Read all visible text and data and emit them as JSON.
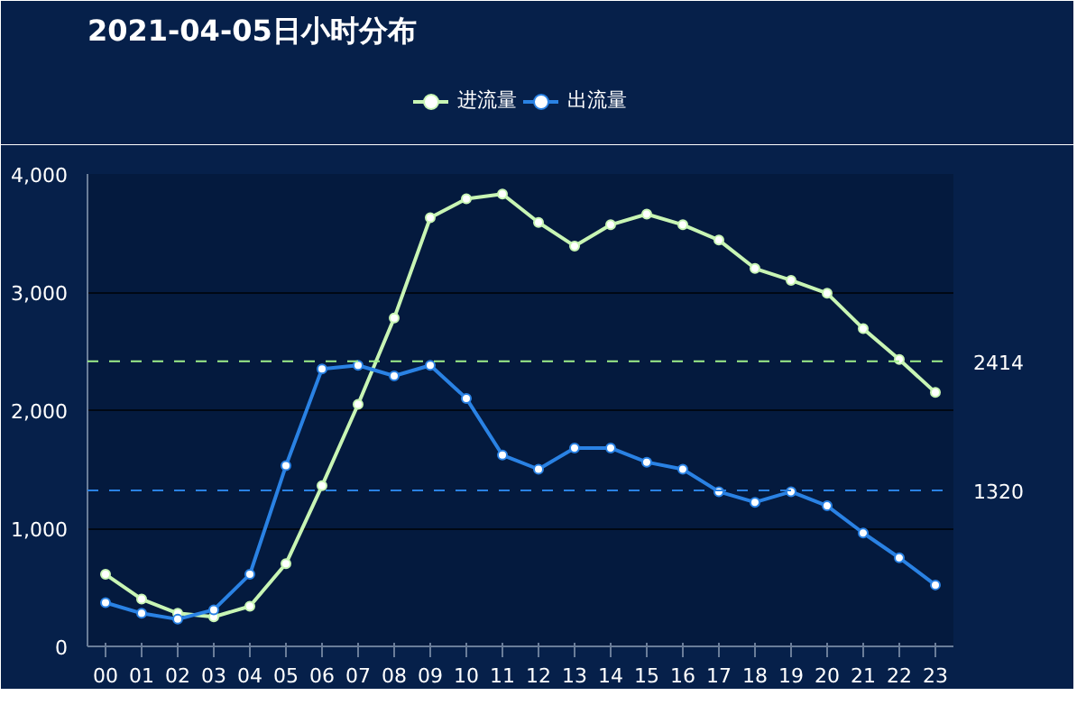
{
  "chart_data": {
    "type": "line",
    "title": "2021-04-05日小时分布",
    "categories": [
      "00",
      "01",
      "02",
      "03",
      "04",
      "05",
      "06",
      "07",
      "08",
      "09",
      "10",
      "11",
      "12",
      "13",
      "14",
      "15",
      "16",
      "17",
      "18",
      "19",
      "20",
      "21",
      "22",
      "23"
    ],
    "series": [
      {
        "name": "进流量",
        "color": "#c8f5b4",
        "values": [
          610,
          400,
          280,
          250,
          340,
          700,
          1360,
          2050,
          2780,
          3630,
          3790,
          3830,
          3590,
          3390,
          3570,
          3660,
          3570,
          3440,
          3200,
          3100,
          2990,
          2690,
          2430,
          2150
        ]
      },
      {
        "name": "出流量",
        "color": "#2a82e4",
        "values": [
          370,
          280,
          230,
          310,
          610,
          1530,
          2350,
          2380,
          2290,
          2380,
          2100,
          1620,
          1500,
          1680,
          1680,
          1560,
          1500,
          1310,
          1220,
          1310,
          1190,
          960,
          750,
          520
        ]
      }
    ],
    "ylim": [
      0,
      4000
    ],
    "yticks": [
      0,
      {
        "value": 1000,
        "label": "1,000"
      },
      {
        "value": 2000,
        "label": "2,000"
      },
      {
        "value": 3000,
        "label": "3,000"
      },
      {
        "value": 4000,
        "label": "4,000"
      }
    ],
    "ref_lines": [
      {
        "axis": "y",
        "value": 2414,
        "label": "2414",
        "color": "#9ef08a",
        "line_style": "dashed"
      },
      {
        "axis": "y",
        "value": 1320,
        "label": "1320",
        "color": "#2a82e4",
        "line_style": "dashed"
      }
    ],
    "grid": "y",
    "legend": "top",
    "marker": "circle",
    "line_style": "solid"
  }
}
